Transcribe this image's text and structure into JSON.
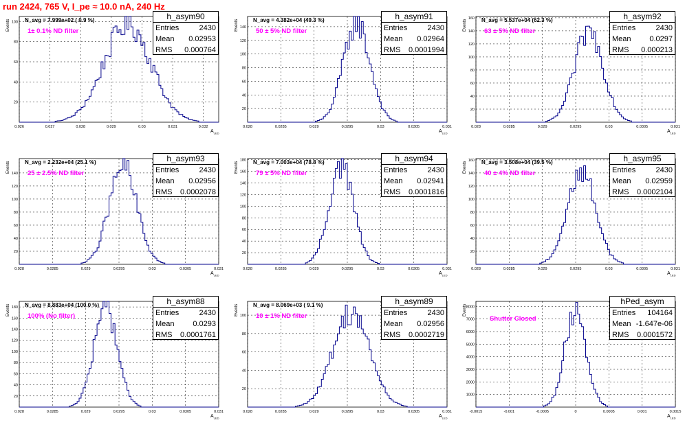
{
  "header": {
    "title": "run 2424,   765 V, I_pe ≈ 10.0 nA, 240 Hz"
  },
  "axis_labels": {
    "y": "Events",
    "x": "A",
    "x_sub": "LED"
  },
  "stat_labels": {
    "entries": "Entries",
    "mean": "Mean",
    "rms": "RMS"
  },
  "colors": {
    "histogram": "#00008b",
    "grid": "#000000",
    "title": "#ff0000",
    "filter_label": "#ff00ff"
  },
  "chart_data": [
    {
      "type": "bar",
      "name": "h_asym90",
      "navg": "N_avg = 7.999e+02 ( 0.9 %)",
      "filter": "1± 0.1% ND filter",
      "stats": {
        "entries": "2430",
        "mean": "0.02953",
        "rms": "0.000764"
      },
      "xlim": [
        0.026,
        0.0325
      ],
      "ylim": [
        0,
        105
      ],
      "xticks": [
        "0.026",
        "0.027",
        "0.028",
        "0.029",
        "0.03",
        "0.031",
        "0.032"
      ],
      "yticks": [
        "20",
        "40",
        "60",
        "80",
        "100"
      ],
      "mean": 0.02953,
      "sigma": 0.000764,
      "peak": 98,
      "bins": 100
    },
    {
      "type": "bar",
      "name": "h_asym91",
      "navg": "N_avg = 4.382e+04 (49.3 %)",
      "filter": "50 ± 5% ND filter",
      "stats": {
        "entries": "2430",
        "mean": "0.02964",
        "rms": "0.0001994"
      },
      "xlim": [
        0.028,
        0.031
      ],
      "ylim": [
        0,
        155
      ],
      "xticks": [
        "0.028",
        "0.0285",
        "0.029",
        "0.0295",
        "0.03",
        "0.0305",
        "0.031"
      ],
      "yticks": [
        "20",
        "40",
        "60",
        "80",
        "100",
        "120",
        "140"
      ],
      "mean": 0.02964,
      "sigma": 0.0001994,
      "peak": 146,
      "bins": 100
    },
    {
      "type": "bar",
      "name": "h_asym92",
      "navg": "N_avg = 5.537e+04 (62.3 %)",
      "filter": "63 ± 5% ND filter",
      "stats": {
        "entries": "2430",
        "mean": "0.0297",
        "rms": "0.000213"
      },
      "xlim": [
        0.028,
        0.031
      ],
      "ylim": [
        0,
        162
      ],
      "xticks": [
        "0.028",
        "0.0285",
        "0.029",
        "0.0295",
        "0.03",
        "0.0305",
        "0.031"
      ],
      "yticks": [
        "20",
        "40",
        "60",
        "80",
        "100",
        "120",
        "140",
        "160"
      ],
      "mean": 0.0297,
      "sigma": 0.000213,
      "peak": 140,
      "bins": 100
    },
    {
      "type": "bar",
      "name": "h_asym93",
      "navg": "N_avg = 2.232e+04 (25.1 %)",
      "filter": "25 ± 2.5% ND filter",
      "stats": {
        "entries": "2430",
        "mean": "0.02956",
        "rms": "0.0002078"
      },
      "xlim": [
        0.028,
        0.031
      ],
      "ylim": [
        0,
        162
      ],
      "xticks": [
        "0.028",
        "0.0285",
        "0.029",
        "0.0295",
        "0.03",
        "0.0305",
        "0.031"
      ],
      "yticks": [
        "20",
        "40",
        "60",
        "80",
        "100",
        "120",
        "140"
      ],
      "mean": 0.02956,
      "sigma": 0.0002078,
      "peak": 150,
      "bins": 100
    },
    {
      "type": "bar",
      "name": "h_asym94",
      "navg": "N_avg = 7.003e+04 (78.8 %)",
      "filter": "79 ± 5% ND filter",
      "stats": {
        "entries": "2430",
        "mean": "0.02941",
        "rms": "0.0001816"
      },
      "xlim": [
        0.028,
        0.031
      ],
      "ylim": [
        0,
        182
      ],
      "xticks": [
        "0.028",
        "0.0285",
        "0.029",
        "0.0295",
        "0.03",
        "0.0305",
        "0.031"
      ],
      "yticks": [
        "20",
        "40",
        "60",
        "80",
        "100",
        "120",
        "140",
        "160",
        "180"
      ],
      "mean": 0.02941,
      "sigma": 0.0001816,
      "peak": 172,
      "bins": 100
    },
    {
      "type": "bar",
      "name": "h_asym95",
      "navg": "N_avg = 3.508e+04 (39.5 %)",
      "filter": "40 ± 4% ND filter",
      "stats": {
        "entries": "2430",
        "mean": "0.02959",
        "rms": "0.0002104"
      },
      "xlim": [
        0.028,
        0.031
      ],
      "ylim": [
        0,
        162
      ],
      "xticks": [
        "0.028",
        "0.0285",
        "0.029",
        "0.0295",
        "0.03",
        "0.0305",
        "0.031"
      ],
      "yticks": [
        "20",
        "40",
        "60",
        "80",
        "100",
        "120",
        "140",
        "160"
      ],
      "mean": 0.02959,
      "sigma": 0.0002104,
      "peak": 144,
      "bins": 100
    },
    {
      "type": "bar",
      "name": "h_asym88",
      "navg": "N_avg = 8.883e+04 (100.0 %)",
      "filter": "100% (No filter)",
      "stats": {
        "entries": "2430",
        "mean": "0.0293",
        "rms": "0.0001761"
      },
      "xlim": [
        0.028,
        0.031
      ],
      "ylim": [
        0,
        190
      ],
      "xticks": [
        "0.028",
        "0.0285",
        "0.029",
        "0.0295",
        "0.03",
        "0.0305",
        "0.031"
      ],
      "yticks": [
        "20",
        "40",
        "60",
        "80",
        "100",
        "120",
        "140",
        "160",
        "180"
      ],
      "mean": 0.0293,
      "sigma": 0.0001761,
      "peak": 178,
      "bins": 100
    },
    {
      "type": "bar",
      "name": "h_asym89",
      "navg": "N_avg = 8.069e+03 ( 9.1 %)",
      "filter": "10 ± 1% ND filter",
      "stats": {
        "entries": "2430",
        "mean": "0.02956",
        "rms": "0.0002719"
      },
      "xlim": [
        0.028,
        0.031
      ],
      "ylim": [
        0,
        115
      ],
      "xticks": [
        "0.028",
        "0.0285",
        "0.029",
        "0.0295",
        "0.03",
        "0.0305",
        "0.031"
      ],
      "yticks": [
        "20",
        "40",
        "60",
        "80",
        "100"
      ],
      "mean": 0.02956,
      "sigma": 0.0002719,
      "peak": 104,
      "bins": 100
    },
    {
      "type": "bar",
      "name": "hPed_asym",
      "navg": "",
      "filter": "Shutter Closed",
      "stats": {
        "entries": "104164",
        "mean": "-1.647e-06",
        "rms": "0.0001572"
      },
      "xlim": [
        -0.0015,
        0.0015
      ],
      "ylim": [
        0,
        8400
      ],
      "xticks": [
        "-0.0015",
        "-0.001",
        "-0.0005",
        "0",
        "0.0005",
        "0.001",
        "0.0015"
      ],
      "yticks": [
        "1000",
        "2000",
        "3000",
        "4000",
        "5000",
        "6000",
        "7000",
        "8000"
      ],
      "mean": 0.0,
      "sigma": 0.0001572,
      "peak": 7900,
      "bins": 100
    }
  ]
}
